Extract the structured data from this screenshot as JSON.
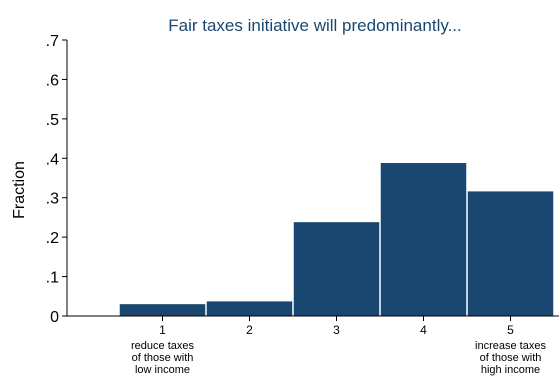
{
  "chart_data": {
    "type": "bar",
    "title": "Fair taxes initiative will predominantly...",
    "xlabel": "",
    "ylabel": "Fraction",
    "categories": [
      "1",
      "2",
      "3",
      "4",
      "5"
    ],
    "category_sublabels": [
      [
        "reduce taxes",
        "of those with",
        "low income"
      ],
      [],
      [],
      [],
      [
        "increase taxes",
        "of those with",
        "high income"
      ]
    ],
    "values": [
      0.03,
      0.037,
      0.238,
      0.388,
      0.316
    ],
    "ylim": [
      0,
      0.7
    ],
    "yticks": [
      0,
      0.1,
      0.2,
      0.3,
      0.4,
      0.5,
      0.6,
      0.7
    ],
    "ytick_labels": [
      "0",
      ".1",
      ".2",
      ".3",
      ".4",
      ".5",
      ".6",
      ".7"
    ],
    "grid": false,
    "legend": "none",
    "bar_color": "#1a476f",
    "title_color": "#1a476f"
  }
}
